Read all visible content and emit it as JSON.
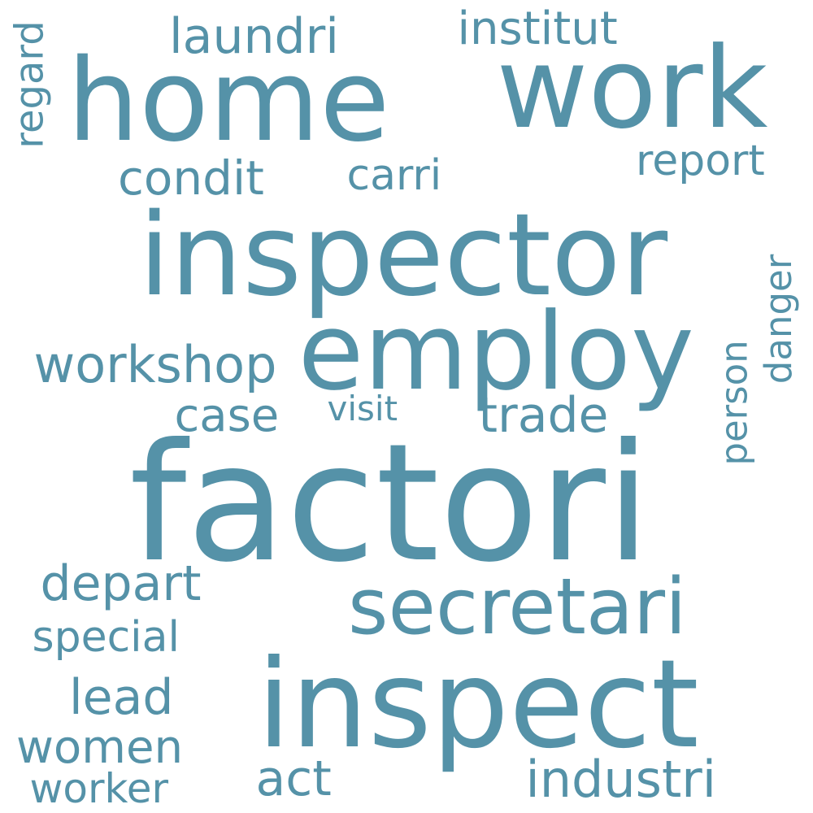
{
  "cloud": {
    "text_color": "#5592a8",
    "background": "#ffffff",
    "words": [
      {
        "name": "word-factori",
        "text": "factori"
      },
      {
        "name": "word-inspector",
        "text": "inspector"
      },
      {
        "name": "word-inspect",
        "text": "inspect"
      },
      {
        "name": "word-home",
        "text": "home"
      },
      {
        "name": "word-work",
        "text": "work"
      },
      {
        "name": "word-employ",
        "text": "employ"
      },
      {
        "name": "word-secretari",
        "text": "secretari"
      },
      {
        "name": "word-workshop",
        "text": "workshop"
      },
      {
        "name": "word-trade",
        "text": "trade"
      },
      {
        "name": "word-case",
        "text": "case"
      },
      {
        "name": "word-visit",
        "text": "visit"
      },
      {
        "name": "word-condit",
        "text": "condit"
      },
      {
        "name": "word-carri",
        "text": "carri"
      },
      {
        "name": "word-report",
        "text": "report"
      },
      {
        "name": "word-laundri",
        "text": "laundri"
      },
      {
        "name": "word-institut",
        "text": "institut"
      },
      {
        "name": "word-regard",
        "text": "regard"
      },
      {
        "name": "word-person",
        "text": "person"
      },
      {
        "name": "word-danger",
        "text": "danger"
      },
      {
        "name": "word-depart",
        "text": "depart"
      },
      {
        "name": "word-special",
        "text": "special"
      },
      {
        "name": "word-lead",
        "text": "lead"
      },
      {
        "name": "word-women",
        "text": "women"
      },
      {
        "name": "word-worker",
        "text": "worker"
      },
      {
        "name": "word-act",
        "text": "act"
      },
      {
        "name": "word-industri",
        "text": "industri"
      }
    ]
  }
}
